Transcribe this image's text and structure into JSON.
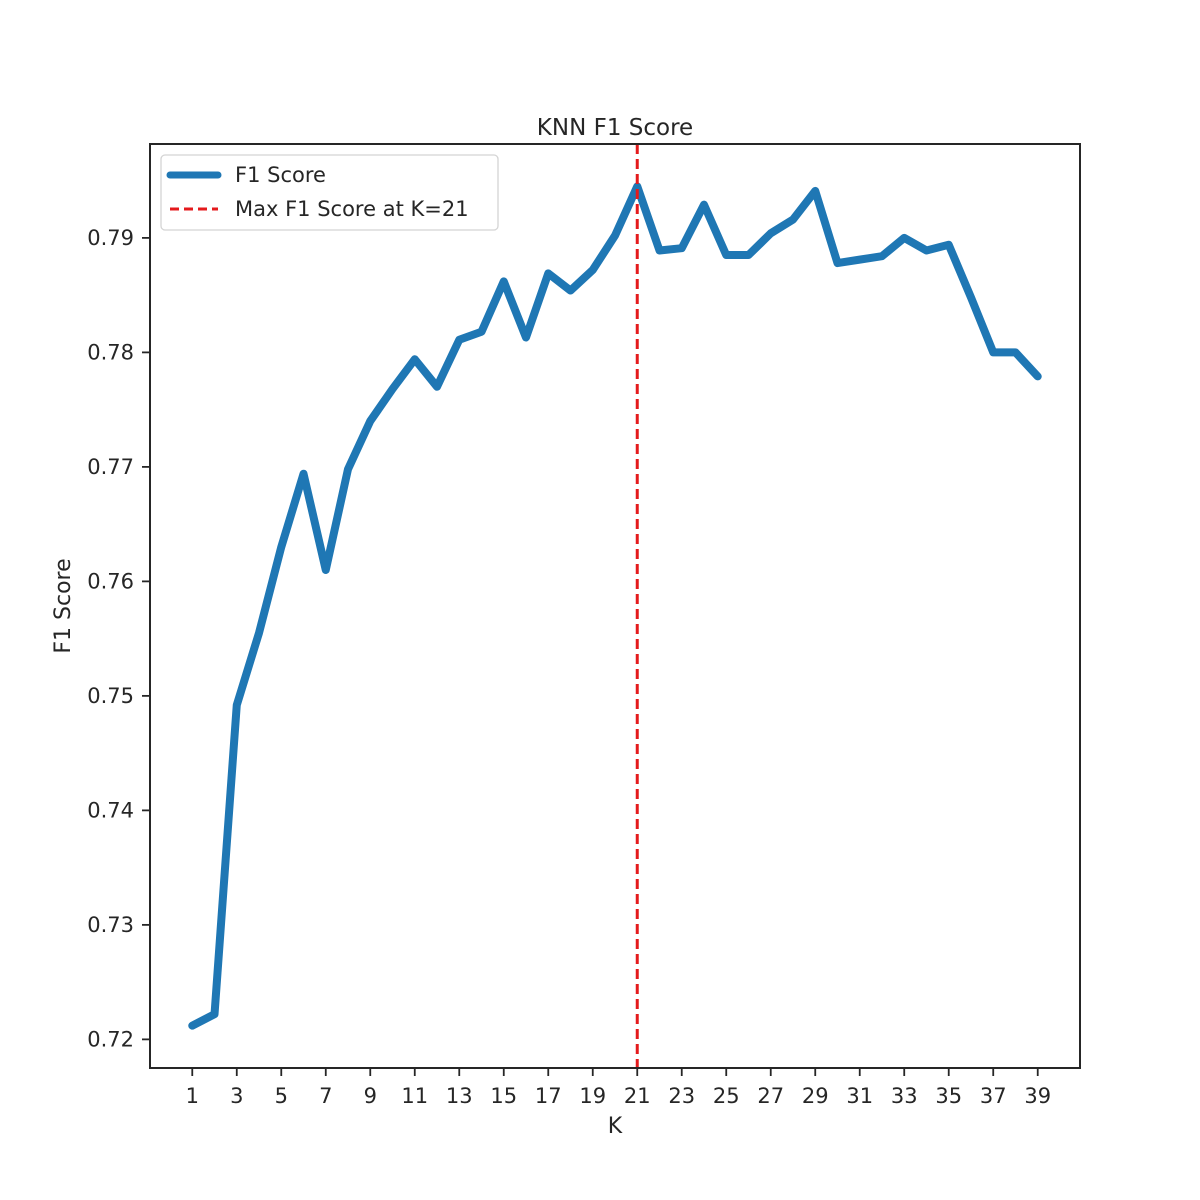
{
  "chart_data": {
    "type": "line",
    "title": "KNN F1 Score",
    "xlabel": "K",
    "ylabel": "F1 Score",
    "x": [
      1,
      2,
      3,
      4,
      5,
      6,
      7,
      8,
      9,
      10,
      11,
      12,
      13,
      14,
      15,
      16,
      17,
      18,
      19,
      20,
      21,
      22,
      23,
      24,
      25,
      26,
      27,
      28,
      29,
      30,
      31,
      32,
      33,
      34,
      35,
      36,
      37,
      38,
      39
    ],
    "series": [
      {
        "name": "F1 Score",
        "color": "#1f77b4",
        "values": [
          0.7212,
          0.7222,
          0.7492,
          0.7555,
          0.763,
          0.7694,
          0.761,
          0.7698,
          0.774,
          0.7768,
          0.7794,
          0.777,
          0.7811,
          0.7818,
          0.7862,
          0.7813,
          0.7869,
          0.7854,
          0.7872,
          0.7902,
          0.7945,
          0.7889,
          0.7891,
          0.7929,
          0.7885,
          0.7885,
          0.7904,
          0.7916,
          0.7941,
          0.7878,
          0.7881,
          0.7884,
          0.79,
          0.7889,
          0.7894,
          0.7848,
          0.78,
          0.78,
          0.7779
        ]
      }
    ],
    "reference_line": {
      "label": "Max F1 Score at K=21",
      "x": 21,
      "color": "#e41a1c",
      "style": "dashed"
    },
    "x_ticks": [
      1,
      3,
      5,
      7,
      9,
      11,
      13,
      15,
      17,
      19,
      21,
      23,
      25,
      27,
      29,
      31,
      33,
      35,
      37,
      39
    ],
    "y_ticks": [
      0.72,
      0.73,
      0.74,
      0.75,
      0.76,
      0.77,
      0.78,
      0.79
    ],
    "xlim": [
      -0.9,
      40.9
    ],
    "ylim": [
      0.7175,
      0.7982
    ],
    "grid": false,
    "legend_position": "upper-left"
  }
}
